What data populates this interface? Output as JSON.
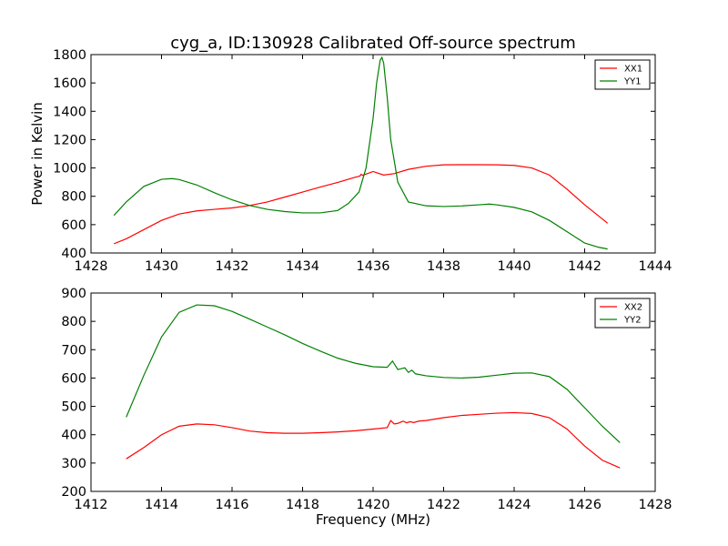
{
  "title": "cyg_a, ID:130928 Calibrated Off-source spectrum",
  "colors": {
    "red": "#ff0000",
    "green": "#008000"
  },
  "chart_data": [
    {
      "type": "line",
      "xlabel": "",
      "ylabel": "Power in Kelvin",
      "xlim": [
        1428,
        1444
      ],
      "ylim": [
        400,
        1800
      ],
      "xticks": [
        "1428",
        "1430",
        "1432",
        "1434",
        "1436",
        "1438",
        "1440",
        "1442",
        "1444"
      ],
      "yticks": [
        "400",
        "600",
        "800",
        "1000",
        "1200",
        "1400",
        "1600",
        "1800"
      ],
      "legend_position": "upper right",
      "grid": false,
      "series": [
        {
          "name": "XX1",
          "color": "#ff0000",
          "x": [
            1428.65,
            1429.0,
            1429.5,
            1430.0,
            1430.5,
            1431.0,
            1431.5,
            1432.0,
            1432.5,
            1433.0,
            1433.5,
            1434.0,
            1434.5,
            1435.0,
            1435.5,
            1435.62,
            1435.66,
            1435.7,
            1436.0,
            1436.3,
            1436.6,
            1437.0,
            1437.5,
            1438.0,
            1438.5,
            1439.0,
            1439.5,
            1440.0,
            1440.5,
            1441.0,
            1441.5,
            1442.0,
            1442.35,
            1442.65
          ],
          "y": [
            465,
            500,
            565,
            630,
            675,
            697,
            708,
            718,
            735,
            760,
            795,
            830,
            865,
            898,
            935,
            942,
            955,
            948,
            975,
            950,
            960,
            990,
            1012,
            1022,
            1023,
            1023,
            1022,
            1018,
            1000,
            950,
            850,
            740,
            670,
            610
          ]
        },
        {
          "name": "YY1",
          "color": "#008000",
          "x": [
            1428.65,
            1429.0,
            1429.5,
            1430.0,
            1430.3,
            1430.5,
            1431.0,
            1431.5,
            1432.0,
            1432.5,
            1433.0,
            1433.5,
            1434.0,
            1434.5,
            1435.0,
            1435.3,
            1435.6,
            1435.8,
            1436.0,
            1436.1,
            1436.2,
            1436.25,
            1436.3,
            1436.4,
            1436.5,
            1436.7,
            1437.0,
            1437.5,
            1438.0,
            1438.5,
            1439.0,
            1439.3,
            1439.5,
            1440.0,
            1440.5,
            1441.0,
            1441.5,
            1442.0,
            1442.4,
            1442.65
          ],
          "y": [
            665,
            760,
            870,
            920,
            925,
            918,
            880,
            825,
            775,
            735,
            708,
            692,
            683,
            683,
            700,
            750,
            830,
            1000,
            1350,
            1600,
            1760,
            1780,
            1740,
            1500,
            1200,
            900,
            760,
            733,
            728,
            732,
            740,
            745,
            740,
            722,
            690,
            630,
            550,
            470,
            440,
            428
          ]
        }
      ]
    },
    {
      "type": "line",
      "xlabel": "Frequency (MHz)",
      "ylabel": "",
      "xlim": [
        1412,
        1428
      ],
      "ylim": [
        200,
        900
      ],
      "xticks": [
        "1412",
        "1414",
        "1416",
        "1418",
        "1420",
        "1422",
        "1424",
        "1426",
        "1428"
      ],
      "yticks": [
        "200",
        "300",
        "400",
        "500",
        "600",
        "700",
        "800",
        "900"
      ],
      "legend_position": "upper right",
      "grid": false,
      "series": [
        {
          "name": "XX2",
          "color": "#ff0000",
          "x": [
            1413.0,
            1413.5,
            1414.0,
            1414.5,
            1415.0,
            1415.5,
            1416.0,
            1416.5,
            1417.0,
            1417.5,
            1418.0,
            1418.5,
            1419.0,
            1419.5,
            1420.0,
            1420.4,
            1420.5,
            1420.6,
            1420.7,
            1420.85,
            1420.95,
            1421.05,
            1421.15,
            1421.3,
            1421.5,
            1422.0,
            1422.5,
            1423.0,
            1423.5,
            1424.0,
            1424.5,
            1425.0,
            1425.5,
            1426.0,
            1426.5,
            1427.0
          ],
          "y": [
            315,
            355,
            400,
            430,
            438,
            435,
            425,
            413,
            407,
            405,
            405,
            407,
            410,
            414,
            420,
            425,
            450,
            438,
            440,
            448,
            442,
            446,
            443,
            448,
            450,
            460,
            468,
            472,
            476,
            478,
            475,
            460,
            420,
            360,
            310,
            283
          ]
        },
        {
          "name": "YY2",
          "color": "#008000",
          "x": [
            1413.0,
            1413.5,
            1414.0,
            1414.5,
            1415.0,
            1415.5,
            1416.0,
            1416.5,
            1417.0,
            1417.5,
            1418.0,
            1418.5,
            1419.0,
            1419.5,
            1420.0,
            1420.4,
            1420.55,
            1420.7,
            1420.9,
            1421.0,
            1421.1,
            1421.2,
            1421.5,
            1422.0,
            1422.5,
            1423.0,
            1423.5,
            1424.0,
            1424.5,
            1425.0,
            1425.5,
            1426.0,
            1426.5,
            1427.0
          ],
          "y": [
            462,
            610,
            745,
            832,
            858,
            855,
            835,
            808,
            780,
            752,
            722,
            695,
            670,
            652,
            640,
            638,
            660,
            630,
            636,
            620,
            628,
            615,
            608,
            602,
            600,
            603,
            610,
            617,
            618,
            605,
            560,
            495,
            430,
            372
          ]
        }
      ]
    }
  ]
}
